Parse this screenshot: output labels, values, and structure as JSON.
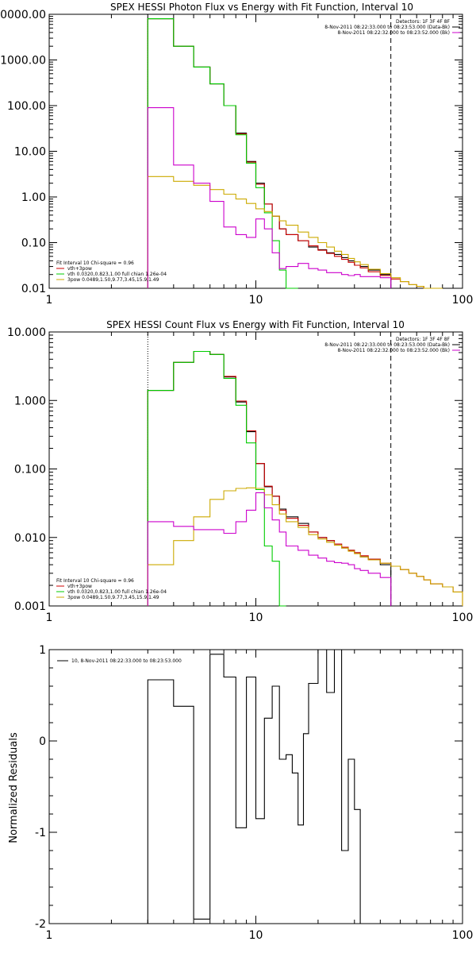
{
  "chart_data": [
    {
      "id": "photon",
      "type": "line",
      "title": "SPEX HESSI Photon Flux vs Energy with Fit Function, Interval 10",
      "xlabel": "",
      "ylabel": "",
      "xscale": "log",
      "yscale": "log",
      "xlim": [
        1,
        100
      ],
      "ylim": [
        0.01,
        10000
      ],
      "xticks": [
        1,
        10,
        100
      ],
      "xtick_labels": [
        "1",
        "10",
        "100"
      ],
      "yticks": [
        0.01,
        0.1,
        1,
        10,
        100,
        1000,
        10000
      ],
      "ytick_labels": [
        "0.01",
        "0.10",
        "1.00",
        "10.00",
        "100.00",
        "1000.00",
        "10000.00"
      ],
      "vlines": [
        {
          "x": 3.0,
          "style": "dotted",
          "color": "#000000"
        },
        {
          "x": 45.0,
          "style": "dashed",
          "color": "#000000"
        }
      ],
      "legend_right": {
        "position": "top-right",
        "lines": [
          {
            "text": "Detectors: 1F 3F 4F 8F",
            "color": null
          },
          {
            "text": "8-Nov-2011 08:22:33.000 to 08:23:53.000 (Data-Bk)",
            "color": "#000000"
          },
          {
            "text": "8-Nov-2011 08:22:32.000 to 08:23:52.000 (Bk)",
            "color": "#cc00cc"
          }
        ]
      },
      "legend_left": {
        "position": "bottom-left",
        "lines": [
          {
            "text": "Fit Interval 10    Chi-square = 0.96",
            "color": null
          },
          {
            "text": "vth+3pow",
            "color": "#cc0000"
          },
          {
            "text": "vth 0.0320,0.823,1.00  full chian 1.26e-04",
            "color": "#00cc00"
          },
          {
            "text": "3pow 0.0489,1.50,9.77,3.45,15.9,1.49",
            "color": "#ccaa00"
          }
        ]
      },
      "series": [
        {
          "name": "Data-Bk",
          "color": "#000000",
          "edges": [
            3,
            4,
            5,
            6,
            7,
            8,
            9,
            10,
            11,
            12,
            13,
            14,
            16,
            18,
            20,
            22,
            24,
            26,
            28,
            30,
            32,
            35,
            40,
            45
          ],
          "values": [
            8000,
            2000,
            700,
            300,
            100,
            25,
            6,
            2,
            0.7,
            0.38,
            0.2,
            0.15,
            0.11,
            0.08,
            0.07,
            0.06,
            0.055,
            0.047,
            0.04,
            0.032,
            0.03,
            0.025,
            0.02
          ]
        },
        {
          "name": "vth+3pow",
          "color": "#cc0000",
          "edges": [
            3,
            4,
            5,
            6,
            7,
            8,
            9,
            10,
            11,
            12,
            13,
            14,
            16,
            18,
            20,
            22,
            24,
            26,
            28,
            30,
            32,
            35,
            40,
            45,
            50,
            55,
            60,
            65,
            70,
            80
          ],
          "values": [
            8000,
            2000,
            700,
            300,
            100,
            24,
            5.8,
            1.9,
            0.7,
            0.38,
            0.2,
            0.15,
            0.11,
            0.085,
            0.068,
            0.058,
            0.05,
            0.043,
            0.037,
            0.032,
            0.028,
            0.023,
            0.019,
            0.016,
            0.014,
            0.012,
            0.011,
            0.01,
            0.009
          ]
        },
        {
          "name": "vth",
          "color": "#00cc00",
          "edges": [
            3,
            4,
            5,
            6,
            7,
            8,
            9,
            10,
            11,
            12,
            13,
            14,
            16
          ],
          "values": [
            8000,
            2000,
            700,
            300,
            100,
            23,
            5.5,
            1.6,
            0.45,
            0.11,
            0.025,
            0.0
          ]
        },
        {
          "name": "3pow",
          "color": "#ccaa00",
          "edges": [
            3,
            4,
            5,
            6,
            7,
            8,
            9,
            10,
            11,
            12,
            13,
            14,
            16,
            18,
            20,
            22,
            24,
            26,
            28,
            30,
            32,
            35,
            40,
            45,
            50,
            55,
            60,
            65,
            70,
            80
          ],
          "values": [
            2.8,
            2.2,
            1.8,
            1.45,
            1.15,
            0.9,
            0.72,
            0.55,
            0.48,
            0.38,
            0.3,
            0.24,
            0.17,
            0.13,
            0.1,
            0.08,
            0.065,
            0.055,
            0.045,
            0.038,
            0.033,
            0.026,
            0.021,
            0.017,
            0.014,
            0.012,
            0.011,
            0.01,
            0.009
          ]
        },
        {
          "name": "Bk",
          "color": "#cc00cc",
          "edges": [
            3,
            4,
            5,
            6,
            7,
            8,
            9,
            10,
            11,
            12,
            13,
            14,
            16,
            18,
            20,
            22,
            24,
            26,
            28,
            30,
            32,
            35,
            40,
            45
          ],
          "values": [
            90,
            5,
            2,
            0.8,
            0.22,
            0.15,
            0.13,
            0.33,
            0.2,
            0.06,
            0.027,
            0.03,
            0.035,
            0.027,
            0.025,
            0.022,
            0.022,
            0.02,
            0.019,
            0.02,
            0.018,
            0.018,
            0.017
          ]
        }
      ]
    },
    {
      "id": "count",
      "type": "line",
      "title": "SPEX HESSI Count Flux vs Energy with Fit Function, Interval 10",
      "xlabel": "",
      "ylabel": "",
      "xscale": "log",
      "yscale": "log",
      "xlim": [
        1,
        100
      ],
      "ylim": [
        0.001,
        10
      ],
      "xticks": [
        1,
        10,
        100
      ],
      "xtick_labels": [
        "1",
        "10",
        "100"
      ],
      "yticks": [
        0.001,
        0.01,
        0.1,
        1,
        10
      ],
      "ytick_labels": [
        "0.001",
        "0.010",
        "0.100",
        "1.000",
        "10.000"
      ],
      "vlines": [
        {
          "x": 3.0,
          "style": "dotted",
          "color": "#000000"
        },
        {
          "x": 45.0,
          "style": "dashed",
          "color": "#000000"
        }
      ],
      "legend_right": {
        "position": "top-right",
        "lines": [
          {
            "text": "Detectors: 1F 3F 4F 8F",
            "color": null
          },
          {
            "text": "8-Nov-2011 08:22:33.000 to 08:23:53.000 (Data-Bk)",
            "color": "#000000"
          },
          {
            "text": "8-Nov-2011 08:22:32.000 to 08:23:52.000 (Bk)",
            "color": "#cc00cc"
          }
        ]
      },
      "legend_left": {
        "position": "bottom-left",
        "lines": [
          {
            "text": "Fit Interval 10    Chi-square = 0.96",
            "color": null
          },
          {
            "text": "vth+3pow",
            "color": "#cc0000"
          },
          {
            "text": "vth 0.0320,0.823,1.00  full chian 1.26e-04",
            "color": "#00cc00"
          },
          {
            "text": "3pow 0.0489,1.50,9.77,3.45,15.9,1.49",
            "color": "#ccaa00"
          }
        ]
      },
      "series": [
        {
          "name": "Data-Bk",
          "color": "#000000",
          "edges": [
            3,
            4,
            5,
            6,
            7,
            8,
            9,
            10,
            11,
            12,
            13,
            14,
            16,
            18,
            20,
            22,
            24,
            26,
            28,
            30,
            32,
            35,
            40,
            45
          ],
          "values": [
            1.4,
            3.6,
            5.2,
            4.7,
            2.2,
            0.95,
            0.35,
            0.12,
            0.055,
            0.04,
            0.026,
            0.02,
            0.016,
            0.012,
            0.01,
            0.009,
            0.008,
            0.007,
            0.0065,
            0.006,
            0.0052,
            0.0048,
            0.004
          ]
        },
        {
          "name": "vth+3pow",
          "color": "#cc0000",
          "edges": [
            3,
            4,
            5,
            6,
            7,
            8,
            9,
            10,
            11,
            12,
            13,
            14,
            16,
            18,
            20,
            22,
            24,
            26,
            28,
            30,
            32,
            35,
            40,
            45,
            50,
            55,
            60,
            65,
            70,
            80,
            90,
            100
          ],
          "values": [
            1.4,
            3.6,
            5.2,
            4.7,
            2.25,
            0.98,
            0.36,
            0.12,
            0.056,
            0.04,
            0.025,
            0.019,
            0.015,
            0.012,
            0.01,
            0.009,
            0.008,
            0.0072,
            0.0065,
            0.006,
            0.0054,
            0.0048,
            0.0042,
            0.0038,
            0.0034,
            0.003,
            0.0027,
            0.0024,
            0.0021,
            0.0019,
            0.0016
          ]
        },
        {
          "name": "vth",
          "color": "#00cc00",
          "edges": [
            3,
            4,
            5,
            6,
            7,
            8,
            9,
            10,
            11,
            12,
            13,
            14
          ],
          "values": [
            1.4,
            3.6,
            5.2,
            4.7,
            2.1,
            0.85,
            0.24,
            0.05,
            0.0075,
            0.0045,
            0.0008
          ]
        },
        {
          "name": "3pow",
          "color": "#ccaa00",
          "edges": [
            3,
            4,
            5,
            6,
            7,
            8,
            9,
            10,
            11,
            12,
            13,
            14,
            16,
            18,
            20,
            22,
            24,
            26,
            28,
            30,
            32,
            35,
            40,
            45,
            50,
            55,
            60,
            65,
            70,
            80,
            90,
            100
          ],
          "values": [
            0.004,
            0.009,
            0.02,
            0.036,
            0.048,
            0.052,
            0.053,
            0.052,
            0.042,
            0.03,
            0.022,
            0.017,
            0.014,
            0.011,
            0.0095,
            0.0085,
            0.0077,
            0.007,
            0.0063,
            0.0058,
            0.0052,
            0.0047,
            0.0042,
            0.0038,
            0.0034,
            0.003,
            0.0027,
            0.0024,
            0.0021,
            0.0019,
            0.0016
          ]
        },
        {
          "name": "Bk",
          "color": "#cc00cc",
          "edges": [
            3,
            4,
            5,
            6,
            7,
            8,
            9,
            10,
            11,
            12,
            13,
            14,
            16,
            18,
            20,
            22,
            24,
            26,
            28,
            30,
            32,
            35,
            40,
            45
          ],
          "values": [
            0.017,
            0.0145,
            0.013,
            0.013,
            0.0115,
            0.017,
            0.025,
            0.045,
            0.027,
            0.018,
            0.012,
            0.0075,
            0.0065,
            0.0055,
            0.005,
            0.0045,
            0.0043,
            0.0042,
            0.004,
            0.0035,
            0.0033,
            0.003,
            0.0026
          ]
        }
      ]
    },
    {
      "id": "residuals",
      "type": "line",
      "title": "",
      "xlabel": "",
      "ylabel": "Normalized Residuals",
      "xscale": "log",
      "yscale": "linear",
      "xlim": [
        1,
        100
      ],
      "ylim": [
        -2,
        1
      ],
      "xticks": [
        1,
        10,
        100
      ],
      "xtick_labels": [
        "1",
        "10",
        "100"
      ],
      "yticks": [
        -2,
        -1,
        0,
        1
      ],
      "ytick_labels": [
        "-2",
        "-1",
        "0",
        "1"
      ],
      "legend_text": "10,  8-Nov-2011 08:22:33.000 to 08:23:53.000",
      "series": [
        {
          "name": "10,  8-Nov-2011 08:22:33.000 to 08:23:53.000",
          "color": "#000000",
          "edges": [
            3,
            4,
            5,
            6,
            7,
            8,
            9,
            10,
            11,
            12,
            13,
            14,
            15,
            16,
            17,
            18,
            20,
            22,
            24,
            26,
            28,
            30,
            32,
            35,
            40,
            45
          ],
          "values": [
            0.67,
            0.38,
            -1.95,
            0.95,
            0.7,
            -0.95,
            0.7,
            -0.85,
            0.25,
            0.6,
            -0.2,
            -0.15,
            -0.35,
            -0.92,
            0.08,
            0.63,
            1.0,
            0.53,
            1.0,
            -1.2,
            -0.2,
            -0.75,
            -2.0,
            -2.0,
            -2.0
          ]
        }
      ]
    }
  ]
}
